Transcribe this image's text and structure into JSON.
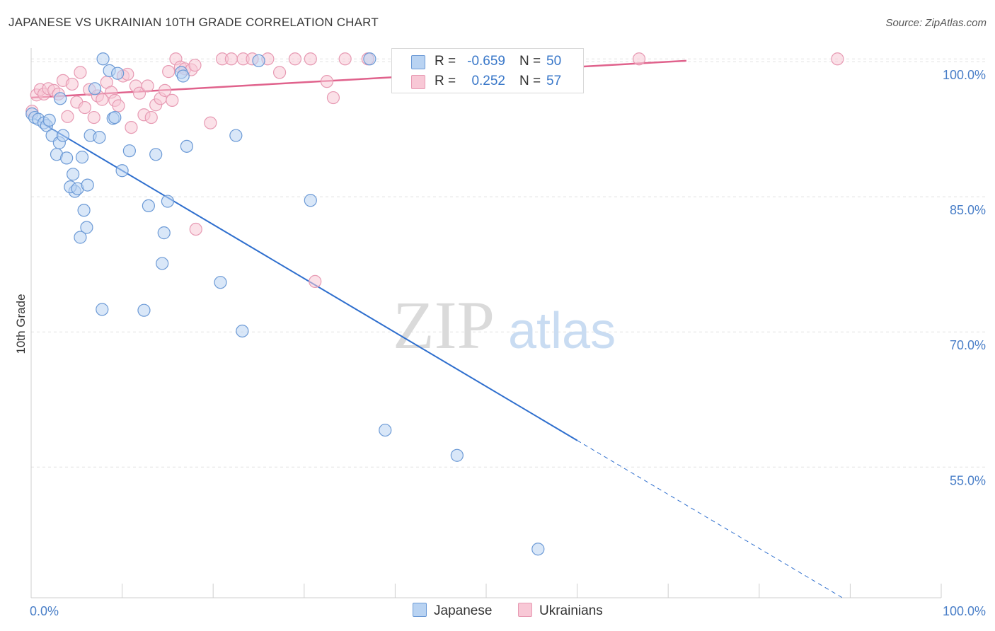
{
  "title": "JAPANESE VS UKRAINIAN 10TH GRADE CORRELATION CHART",
  "source": "Source: ZipAtlas.com",
  "watermark": {
    "zip": "ZIP",
    "atlas": "atlas"
  },
  "colors": {
    "japanese_fill": "#b9d3f2",
    "japanese_stroke": "#6c9ad6",
    "japanese_line": "#2f6fce",
    "ukrainian_fill": "#f8c8d6",
    "ukrainian_stroke": "#e79ab3",
    "ukrainian_line": "#e0628c",
    "tick_text": "#4a7fc8",
    "grid": "#e2e2e2"
  },
  "legend": {
    "rows": [
      {
        "r_label": "R =",
        "r_value": "-0.659",
        "n_label": "N =",
        "n_value": "50"
      },
      {
        "r_label": "R =",
        "r_value": "0.252",
        "n_label": "N =",
        "n_value": "57"
      }
    ]
  },
  "bottom_legend": {
    "japanese": "Japanese",
    "ukrainians": "Ukrainians"
  },
  "chart_data": {
    "type": "scatter",
    "title": "JAPANESE VS UKRAINIAN 10TH GRADE CORRELATION CHART",
    "xlabel": "",
    "ylabel": "10th Grade",
    "xlim": [
      0,
      100
    ],
    "ylim": [
      40.5,
      101.5
    ],
    "x_tick_labels": [
      "0.0%",
      "100.0%"
    ],
    "y_ticks": [
      100,
      85,
      70,
      55
    ],
    "y_tick_labels": [
      "100.0%",
      "85.0%",
      "70.0%",
      "55.0%"
    ],
    "grid": "horizontal dashed",
    "legend_position": "top-center",
    "series": [
      {
        "name": "Japanese",
        "points": [
          [
            0.1,
            94.2
          ],
          [
            0.4,
            93.8
          ],
          [
            0.8,
            93.6
          ],
          [
            1.4,
            93.2
          ],
          [
            1.7,
            92.9
          ],
          [
            2.0,
            93.5
          ],
          [
            2.3,
            91.8
          ],
          [
            2.8,
            89.7
          ],
          [
            3.2,
            95.9
          ],
          [
            3.1,
            91.0
          ],
          [
            3.5,
            91.8
          ],
          [
            3.9,
            89.3
          ],
          [
            4.6,
            87.5
          ],
          [
            4.8,
            85.6
          ],
          [
            4.3,
            86.1
          ],
          [
            5.6,
            89.4
          ],
          [
            5.1,
            85.9
          ],
          [
            6.2,
            86.3
          ],
          [
            5.8,
            83.5
          ],
          [
            6.1,
            81.6
          ],
          [
            5.4,
            80.5
          ],
          [
            7.0,
            97.0
          ],
          [
            6.5,
            91.8
          ],
          [
            7.5,
            91.6
          ],
          [
            7.9,
            100.3
          ],
          [
            8.6,
            99.0
          ],
          [
            9.0,
            93.7
          ],
          [
            9.2,
            93.8
          ],
          [
            9.5,
            98.7
          ],
          [
            10.0,
            87.9
          ],
          [
            10.8,
            90.1
          ],
          [
            12.9,
            84.0
          ],
          [
            13.7,
            89.7
          ],
          [
            14.6,
            81.0
          ],
          [
            14.4,
            77.6
          ],
          [
            15.0,
            84.5
          ],
          [
            16.5,
            98.8
          ],
          [
            16.7,
            98.4
          ],
          [
            17.1,
            90.6
          ],
          [
            20.8,
            75.5
          ],
          [
            22.5,
            91.8
          ],
          [
            23.2,
            70.1
          ],
          [
            7.8,
            72.5
          ],
          [
            12.4,
            72.4
          ],
          [
            30.7,
            84.6
          ],
          [
            37.2,
            100.3
          ],
          [
            38.9,
            59.1
          ],
          [
            46.8,
            56.3
          ],
          [
            55.7,
            45.9
          ],
          [
            25.0,
            100.1
          ]
        ]
      },
      {
        "name": "Ukrainians",
        "points": [
          [
            0.1,
            94.5
          ],
          [
            0.6,
            96.3
          ],
          [
            1.0,
            96.9
          ],
          [
            1.4,
            96.4
          ],
          [
            1.9,
            97.0
          ],
          [
            2.5,
            96.8
          ],
          [
            3.0,
            96.4
          ],
          [
            3.5,
            97.9
          ],
          [
            4.0,
            93.9
          ],
          [
            4.5,
            97.5
          ],
          [
            5.0,
            95.5
          ],
          [
            5.4,
            98.8
          ],
          [
            5.9,
            94.9
          ],
          [
            6.4,
            96.9
          ],
          [
            6.9,
            93.8
          ],
          [
            7.3,
            96.2
          ],
          [
            7.8,
            95.8
          ],
          [
            8.3,
            97.7
          ],
          [
            8.8,
            96.6
          ],
          [
            9.2,
            95.7
          ],
          [
            9.6,
            95.1
          ],
          [
            10.1,
            98.4
          ],
          [
            10.6,
            98.6
          ],
          [
            11.0,
            92.7
          ],
          [
            11.5,
            97.3
          ],
          [
            11.9,
            96.5
          ],
          [
            12.4,
            94.1
          ],
          [
            12.8,
            97.3
          ],
          [
            13.2,
            93.8
          ],
          [
            13.7,
            95.2
          ],
          [
            14.2,
            95.9
          ],
          [
            14.7,
            96.8
          ],
          [
            15.1,
            98.9
          ],
          [
            15.5,
            95.7
          ],
          [
            15.9,
            100.3
          ],
          [
            16.4,
            99.4
          ],
          [
            16.9,
            99.2
          ],
          [
            17.6,
            99.1
          ],
          [
            18.0,
            99.6
          ],
          [
            18.1,
            81.4
          ],
          [
            19.7,
            93.2
          ],
          [
            21.0,
            100.3
          ],
          [
            22.0,
            100.3
          ],
          [
            23.3,
            100.3
          ],
          [
            24.3,
            100.3
          ],
          [
            26.0,
            100.3
          ],
          [
            27.3,
            98.8
          ],
          [
            29.0,
            100.3
          ],
          [
            30.7,
            100.3
          ],
          [
            31.2,
            75.6
          ],
          [
            32.5,
            97.8
          ],
          [
            33.2,
            96.0
          ],
          [
            34.5,
            100.3
          ],
          [
            37.0,
            100.3
          ],
          [
            47.5,
            100.3
          ],
          [
            66.8,
            100.3
          ],
          [
            88.6,
            100.3
          ]
        ]
      }
    ],
    "trend_lines": [
      {
        "series": "Japanese",
        "x": [
          0,
          100
        ],
        "y": [
          93.9,
          34.0
        ],
        "solid_until_x": 60
      },
      {
        "series": "Ukrainians",
        "x": [
          0,
          72
        ],
        "y": [
          96.0,
          100.1
        ]
      }
    ]
  }
}
